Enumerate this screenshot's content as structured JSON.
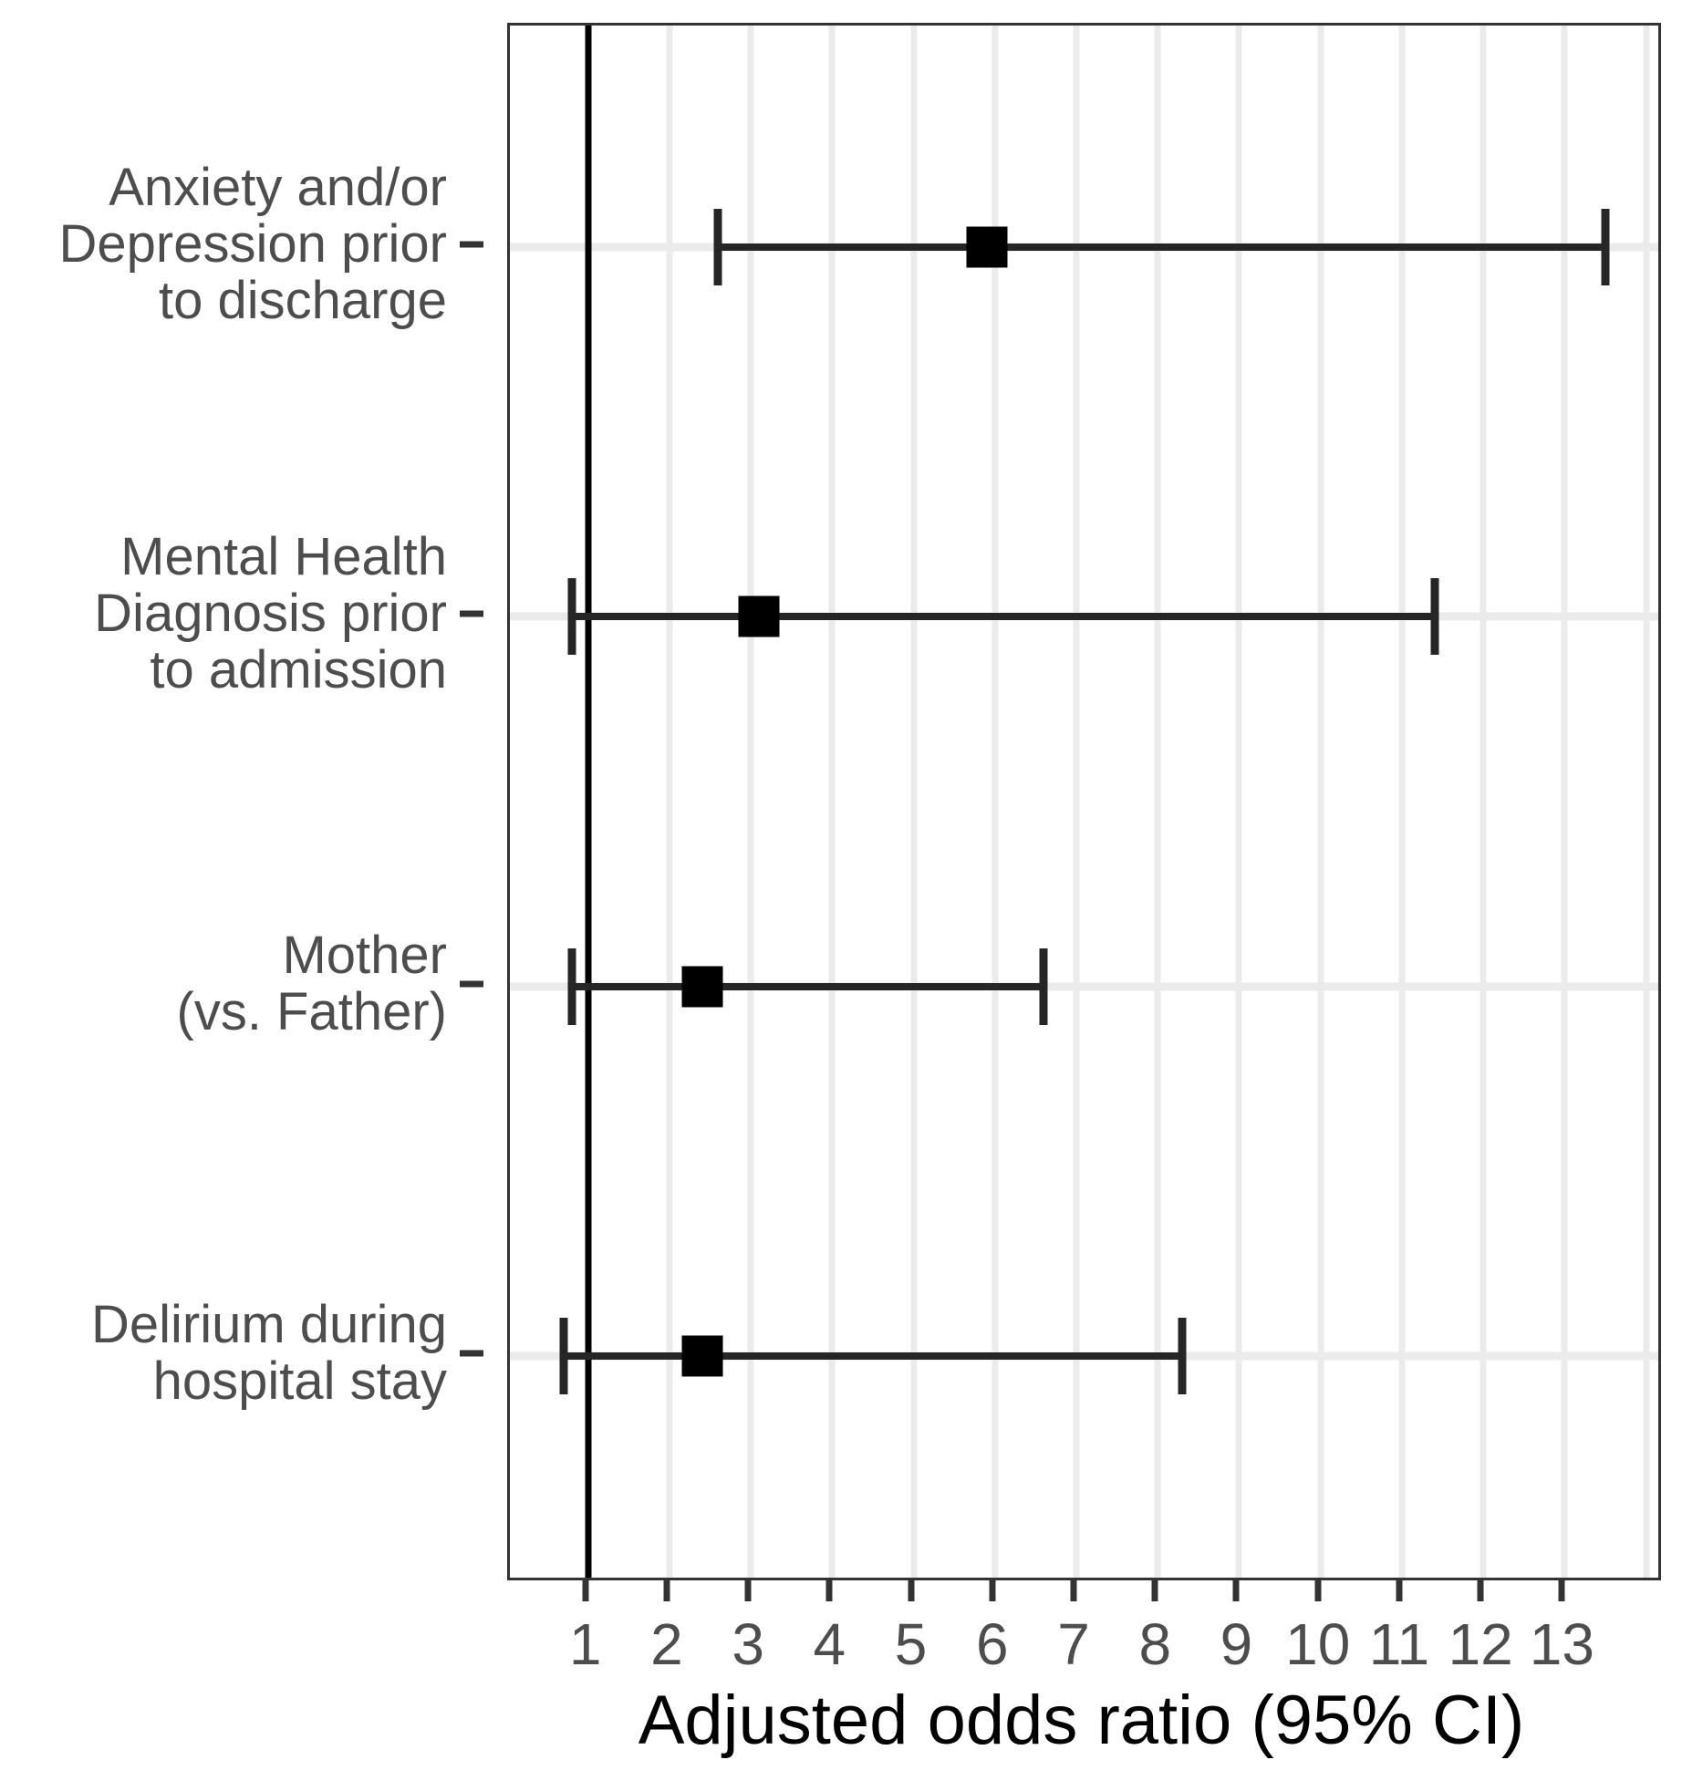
{
  "chart_data": {
    "type": "scatter",
    "subtype": "forest-plot (points with 95% CI error bars)",
    "title": "",
    "xlabel": "Adjusted odds ratio (95% CI)",
    "ylabel": "",
    "xlim": [
      0.04,
      14.15
    ],
    "x_ticks": [
      1,
      2,
      3,
      4,
      5,
      6,
      7,
      8,
      9,
      10,
      11,
      12,
      13
    ],
    "gridlines_x": [
      1,
      2,
      3,
      4,
      5,
      6,
      7,
      8,
      9,
      10,
      11,
      12,
      13,
      14
    ],
    "reference_line_x": 1,
    "grid": true,
    "legend": "none",
    "rows": [
      {
        "label": "Anxiety and/or Depression prior to discharge",
        "label_lines": [
          "Anxiety and/or",
          "Depression prior",
          "to discharge"
        ],
        "odds_ratio": 5.9,
        "ci_low": 2.6,
        "ci_high": 13.5
      },
      {
        "label": "Mental Health Diagnosis prior to admission",
        "label_lines": [
          "Mental Health",
          "Diagnosis prior",
          "to admission"
        ],
        "odds_ratio": 3.1,
        "ci_low": 0.8,
        "ci_high": 11.4
      },
      {
        "label": "Mother (vs. Father)",
        "label_lines": [
          "Mother",
          "(vs. Father)"
        ],
        "odds_ratio": 2.4,
        "ci_low": 0.8,
        "ci_high": 6.6
      },
      {
        "label": "Delirium during hospital stay",
        "label_lines": [
          "Delirium during",
          "hospital stay"
        ],
        "odds_ratio": 2.4,
        "ci_low": 0.7,
        "ci_high": 8.3
      }
    ],
    "colors": {
      "point": "#000000",
      "error_bar": "#262626",
      "reference_line": "#000000",
      "gridline": "#ebebeb",
      "panel_border": "#333333",
      "axis_text": "#4d4d4d",
      "axis_title": "#000000",
      "background": "#ffffff"
    }
  }
}
